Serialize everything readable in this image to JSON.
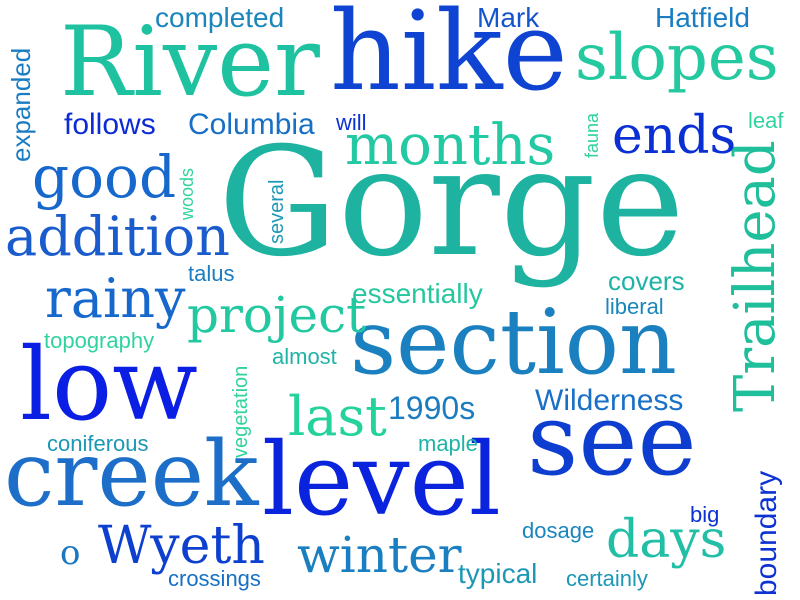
{
  "colors": {
    "teal": "#1fc79a",
    "teal_light": "#30d3a0",
    "cyan": "#1fb3a6",
    "steel": "#1a7fc0",
    "blue": "#1048d8",
    "deep_blue": "#0a22e0",
    "royal": "#0630c8"
  },
  "words": [
    {
      "text": "Gorge"
    },
    {
      "text": "hike"
    },
    {
      "text": "River"
    },
    {
      "text": "section"
    },
    {
      "text": "see"
    },
    {
      "text": "level"
    },
    {
      "text": "low"
    },
    {
      "text": "creek"
    },
    {
      "text": "Trailhead"
    },
    {
      "text": "slopes"
    },
    {
      "text": "months"
    },
    {
      "text": "ends"
    },
    {
      "text": "good"
    },
    {
      "text": "addition"
    },
    {
      "text": "rainy"
    },
    {
      "text": "project"
    },
    {
      "text": "last"
    },
    {
      "text": "winter"
    },
    {
      "text": "days"
    },
    {
      "text": "Wyeth"
    },
    {
      "text": "follows"
    },
    {
      "text": "Columbia"
    },
    {
      "text": "completed"
    },
    {
      "text": "Mark"
    },
    {
      "text": "Hatfield"
    },
    {
      "text": "expanded"
    },
    {
      "text": "will"
    },
    {
      "text": "fauna"
    },
    {
      "text": "leaf"
    },
    {
      "text": "woods"
    },
    {
      "text": "several"
    },
    {
      "text": "talus"
    },
    {
      "text": "covers"
    },
    {
      "text": "liberal"
    },
    {
      "text": "essentially"
    },
    {
      "text": "topography"
    },
    {
      "text": "almost"
    },
    {
      "text": "vegetation"
    },
    {
      "text": "1990s"
    },
    {
      "text": "Wilderness"
    },
    {
      "text": "coniferous"
    },
    {
      "text": "maple"
    },
    {
      "text": "boundary"
    },
    {
      "text": "big"
    },
    {
      "text": "dosage"
    },
    {
      "text": "o"
    },
    {
      "text": "typical"
    },
    {
      "text": "crossings"
    },
    {
      "text": "certainly"
    }
  ]
}
